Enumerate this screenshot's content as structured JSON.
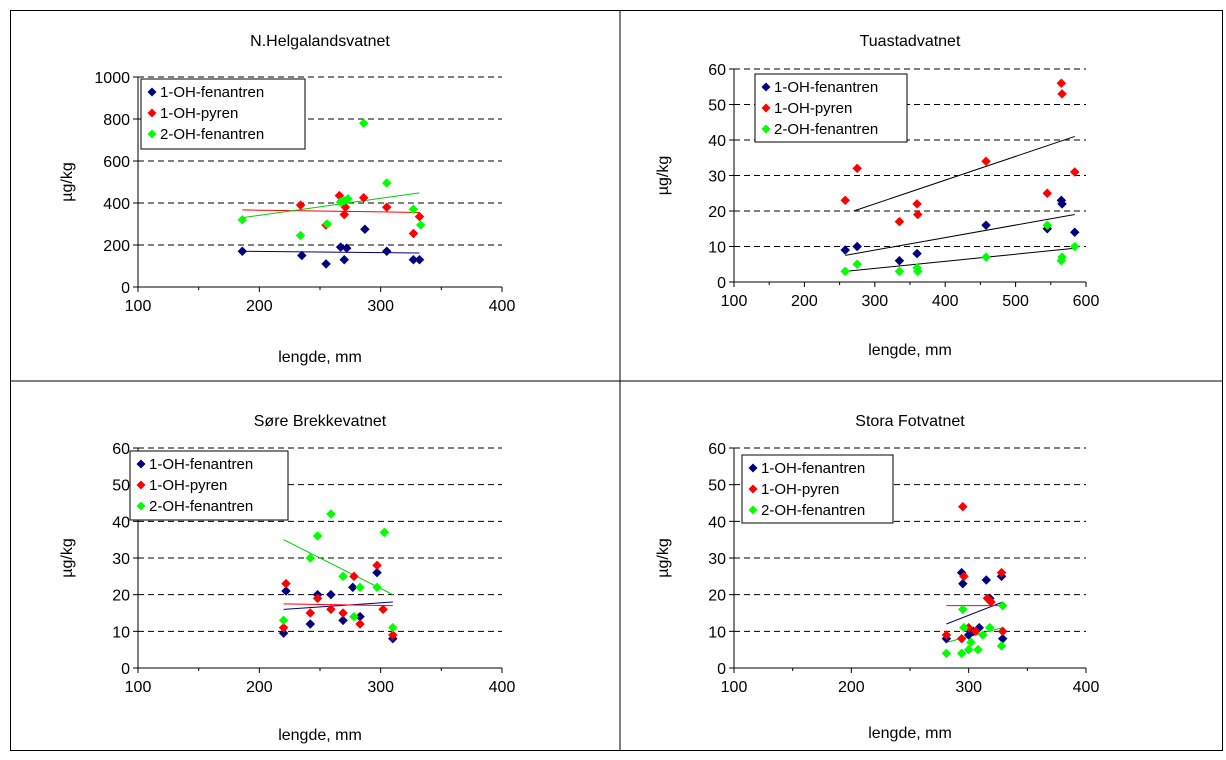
{
  "colors": {
    "s1": "#00007F",
    "s2": "#FF0000",
    "s3": "#00FF00",
    "grid": "#000000",
    "trend_1": "#00007F",
    "trend_2": "#FF0000",
    "trend_3": "#00CC00",
    "trend_black": "#000000"
  },
  "chart_data": [
    {
      "type": "scatter",
      "title": "N.Helgalandsvatnet",
      "xlabel": "lengde, mm",
      "ylabel": "µg/kg",
      "xlim": [
        100,
        400
      ],
      "ylim": [
        0,
        1000
      ],
      "xticks": [
        100,
        200,
        300,
        400
      ],
      "yticks": [
        0,
        200,
        400,
        600,
        800,
        1000
      ],
      "xtick_labels": [
        "100",
        "200",
        "300",
        "400"
      ],
      "ytick_labels": [
        "0",
        "200",
        "400",
        "600",
        "800",
        "1000"
      ],
      "grid": "horizontal-dashed",
      "legend_position": "top-left",
      "trend_color_mode": "series",
      "series": [
        {
          "name": "1-OH-fenantren",
          "points": [
            [
              186,
              170
            ],
            [
              235,
              150
            ],
            [
              255,
              110
            ],
            [
              267,
              190
            ],
            [
              270,
              130
            ],
            [
              272,
              185
            ],
            [
              287,
              275
            ],
            [
              305,
              170
            ],
            [
              327,
              130
            ],
            [
              332,
              130
            ]
          ],
          "trend": [
            [
              186,
              170
            ],
            [
              332,
              162
            ]
          ]
        },
        {
          "name": "1-OH-pyren",
          "points": [
            [
              234,
              390
            ],
            [
              255,
              295
            ],
            [
              266,
              435
            ],
            [
              270,
              345
            ],
            [
              271,
              380
            ],
            [
              286,
              425
            ],
            [
              305,
              380
            ],
            [
              327,
              255
            ],
            [
              332,
              335
            ]
          ],
          "trend": [
            [
              186,
              367
            ],
            [
              332,
              355
            ]
          ]
        },
        {
          "name": "2-OH-fenantren",
          "points": [
            [
              186,
              320
            ],
            [
              234,
              245
            ],
            [
              256,
              300
            ],
            [
              267,
              405
            ],
            [
              270,
              410
            ],
            [
              273,
              420
            ],
            [
              286,
              780
            ],
            [
              305,
              495
            ],
            [
              327,
              370
            ],
            [
              333,
              295
            ]
          ],
          "trend": [
            [
              186,
              330
            ],
            [
              332,
              448
            ]
          ]
        }
      ]
    },
    {
      "type": "scatter",
      "title": "Tuastadvatnet",
      "xlabel": "lengde, mm",
      "ylabel": "µg/kg",
      "xlim": [
        100,
        600
      ],
      "ylim": [
        0,
        60
      ],
      "xticks": [
        100,
        200,
        300,
        400,
        500,
        600
      ],
      "yticks": [
        0,
        10,
        20,
        30,
        40,
        50,
        60
      ],
      "xtick_labels": [
        "100",
        "200",
        "300",
        "400",
        "500",
        "600"
      ],
      "ytick_labels": [
        "0",
        "10",
        "20",
        "30",
        "40",
        "50",
        "60"
      ],
      "grid": "horizontal-dashed",
      "legend_position": "top-left",
      "trend_color_mode": "black",
      "series": [
        {
          "name": "1-OH-fenantren",
          "points": [
            [
              258,
              9
            ],
            [
              275,
              10
            ],
            [
              335,
              6
            ],
            [
              360,
              8
            ],
            [
              458,
              16
            ],
            [
              545,
              15
            ],
            [
              565,
              23
            ],
            [
              566,
              22
            ],
            [
              584,
              14
            ]
          ],
          "trend": [
            [
              258,
              7.5
            ],
            [
              584,
              19
            ]
          ]
        },
        {
          "name": "1-OH-pyren",
          "points": [
            [
              258,
              23
            ],
            [
              275,
              32
            ],
            [
              335,
              17
            ],
            [
              360,
              22
            ],
            [
              361,
              19
            ],
            [
              458,
              34
            ],
            [
              545,
              25
            ],
            [
              565,
              56
            ],
            [
              566,
              53
            ],
            [
              584,
              31
            ]
          ],
          "trend": [
            [
              270,
              20
            ],
            [
              584,
              41
            ]
          ]
        },
        {
          "name": "2-OH-fenantren",
          "points": [
            [
              258,
              3
            ],
            [
              275,
              5
            ],
            [
              335,
              3
            ],
            [
              360,
              4
            ],
            [
              361,
              3
            ],
            [
              458,
              7
            ],
            [
              545,
              16
            ],
            [
              565,
              6
            ],
            [
              566,
              7
            ],
            [
              584,
              10
            ]
          ],
          "trend": [
            [
              258,
              3
            ],
            [
              584,
              9.5
            ]
          ]
        }
      ]
    },
    {
      "type": "scatter",
      "title": "Søre Brekkevatnet",
      "xlabel": "lengde, mm",
      "ylabel": "µg/kg",
      "xlim": [
        100,
        400
      ],
      "ylim": [
        0,
        60
      ],
      "xticks": [
        100,
        200,
        300,
        400
      ],
      "yticks": [
        0,
        10,
        20,
        30,
        40,
        50,
        60
      ],
      "xtick_labels": [
        "100",
        "200",
        "300",
        "400"
      ],
      "ytick_labels": [
        "0",
        "10",
        "20",
        "30",
        "40",
        "50",
        "60"
      ],
      "grid": "horizontal-dashed",
      "legend_position": "top-left",
      "trend_color_mode": "series",
      "series": [
        {
          "name": "1-OH-fenantren",
          "points": [
            [
              220,
              9.5
            ],
            [
              222,
              21
            ],
            [
              242,
              12
            ],
            [
              248,
              20
            ],
            [
              259,
              20
            ],
            [
              269,
              13
            ],
            [
              277,
              22
            ],
            [
              283,
              14
            ],
            [
              297,
              26
            ],
            [
              310,
              8
            ]
          ],
          "trend": [
            [
              220,
              16
            ],
            [
              310,
              18
            ]
          ]
        },
        {
          "name": "1-OH-pyren",
          "points": [
            [
              220,
              11
            ],
            [
              222,
              23
            ],
            [
              242,
              15
            ],
            [
              248,
              19
            ],
            [
              259,
              16
            ],
            [
              269,
              15
            ],
            [
              278,
              25
            ],
            [
              283,
              12
            ],
            [
              297,
              28
            ],
            [
              302,
              16
            ],
            [
              310,
              9
            ]
          ],
          "trend": [
            [
              220,
              17.5
            ],
            [
              310,
              17
            ]
          ]
        },
        {
          "name": "2-OH-fenantren",
          "points": [
            [
              220,
              13
            ],
            [
              242,
              30
            ],
            [
              248,
              36
            ],
            [
              259,
              42
            ],
            [
              269,
              25
            ],
            [
              278,
              14
            ],
            [
              283,
              22
            ],
            [
              297,
              22
            ],
            [
              303,
              37
            ],
            [
              310,
              11
            ]
          ],
          "trend": [
            [
              220,
              35
            ],
            [
              310,
              20
            ]
          ]
        }
      ]
    },
    {
      "type": "scatter",
      "title": "Stora Fotvatnet",
      "xlabel": "lengde, mm",
      "ylabel": "µg/kg",
      "xlim": [
        100,
        400
      ],
      "ylim": [
        0,
        60
      ],
      "xticks": [
        100,
        200,
        300,
        400
      ],
      "yticks": [
        0,
        10,
        20,
        30,
        40,
        50,
        60
      ],
      "xtick_labels": [
        "100",
        "200",
        "300",
        "400"
      ],
      "ytick_labels": [
        "0",
        "10",
        "20",
        "30",
        "40",
        "50",
        "60"
      ],
      "grid": "horizontal-dashed",
      "legend_position": "top-left",
      "trend_color_mode": "series",
      "series": [
        {
          "name": "1-OH-fenantren",
          "points": [
            [
              281,
              8
            ],
            [
              294,
              26
            ],
            [
              295,
              23
            ],
            [
              300,
              9
            ],
            [
              304,
              10
            ],
            [
              309,
              11
            ],
            [
              315,
              24
            ],
            [
              318,
              19
            ],
            [
              328,
              25
            ],
            [
              329,
              8
            ]
          ],
          "trend": [
            [
              281,
              12
            ],
            [
              329,
              18
            ]
          ]
        },
        {
          "name": "1-OH-pyren",
          "points": [
            [
              281,
              9
            ],
            [
              294,
              8
            ],
            [
              295,
              44
            ],
            [
              296,
              25
            ],
            [
              300,
              11
            ],
            [
              306,
              10
            ],
            [
              316,
              19
            ],
            [
              319,
              18
            ],
            [
              328,
              26
            ],
            [
              329,
              10
            ]
          ],
          "trend": [
            [
              281,
              17
            ],
            [
              329,
              17
            ]
          ]
        },
        {
          "name": "2-OH-fenantren",
          "points": [
            [
              281,
              4
            ],
            [
              294,
              4
            ],
            [
              295,
              16
            ],
            [
              296,
              11
            ],
            [
              300,
              5
            ],
            [
              302,
              7
            ],
            [
              308,
              5
            ],
            [
              312,
              9
            ],
            [
              318,
              11
            ],
            [
              328,
              6
            ],
            [
              329,
              17
            ]
          ],
          "trend": [
            [
              281,
              7
            ],
            [
              329,
              11
            ]
          ]
        }
      ]
    }
  ]
}
